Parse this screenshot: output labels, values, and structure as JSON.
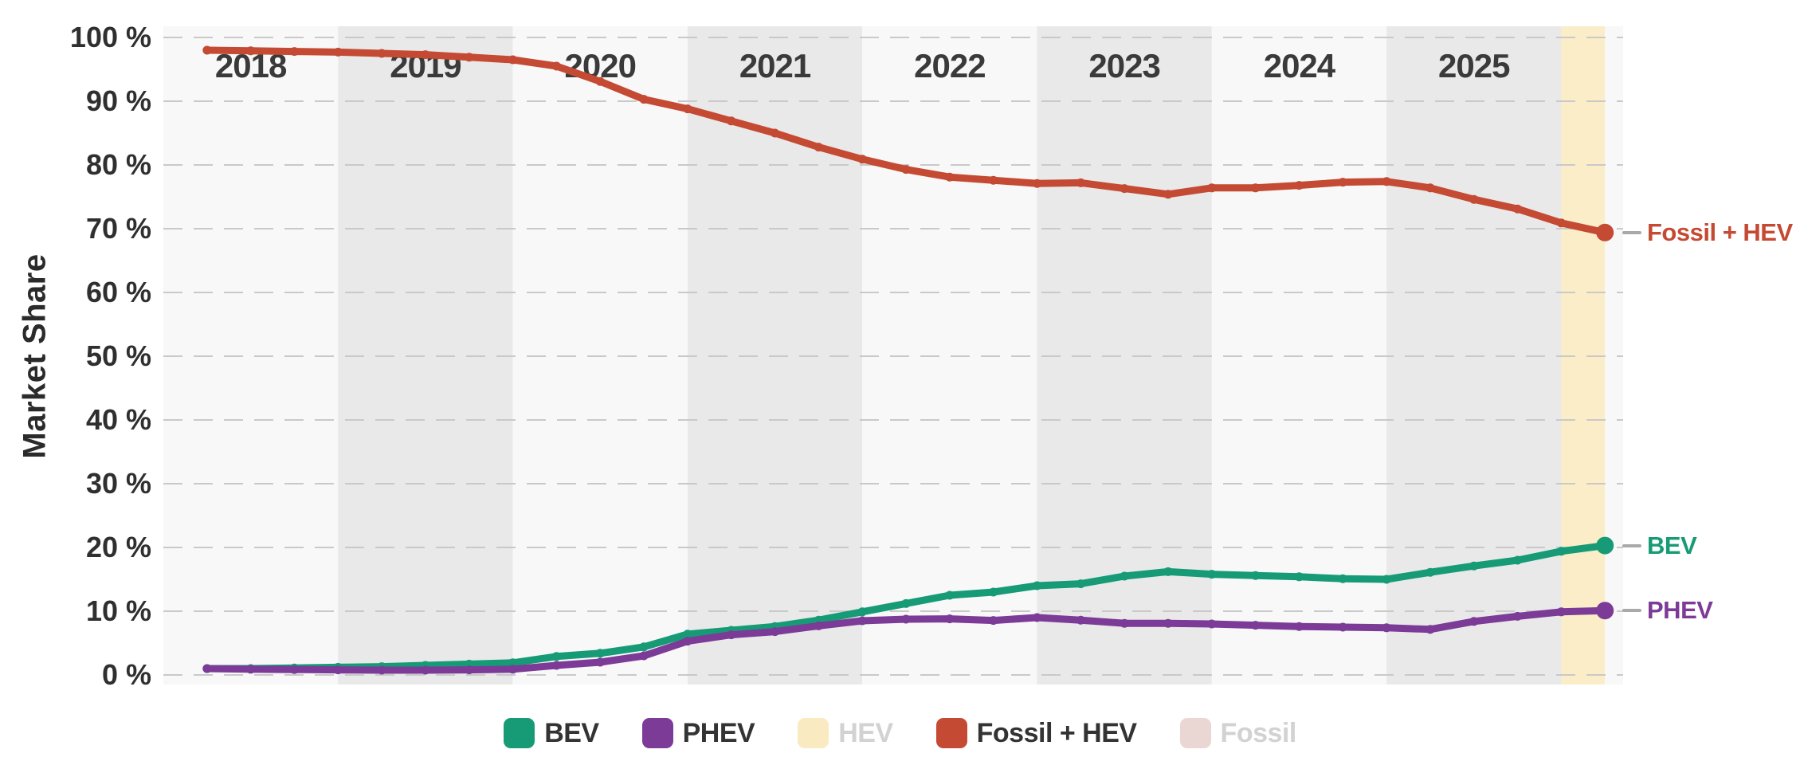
{
  "colors": {
    "band_light": "#f8f8f8",
    "band_dark": "#e9e9e9",
    "highlight_band": "#faedc8",
    "gridline": "#c9c9c9",
    "tick_text": "#2f2f2f",
    "year_text": "#3a3a3a",
    "legend_text_active": "#333333",
    "legend_text_inactive": "#d2d2d2",
    "bev": "#169b76",
    "phev": "#7b3b97",
    "hev": "#faeac2",
    "fossil_hev": "#c44a33",
    "fossil": "#ead7d3"
  },
  "y_tick_labels": [
    "100 %",
    "90 %",
    "80 %",
    "70 %",
    "60 %",
    "50 %",
    "40 %",
    "30 %",
    "20 %",
    "10 %",
    "0 %"
  ],
  "chart_data": {
    "type": "line",
    "title": "",
    "ylabel": "Market Share",
    "ylim": [
      0,
      100
    ],
    "y_tick_step": 10,
    "grid": "horizontal-dashed",
    "legend_position": "bottom",
    "x_unit": "quarter",
    "year_bands": [
      "2018",
      "2019",
      "2020",
      "2021",
      "2022",
      "2023",
      "2024",
      "2025"
    ],
    "highlighted_period": "latest quarter",
    "x": [
      "2018 Q1",
      "2018 Q2",
      "2018 Q3",
      "2018 Q4",
      "2019 Q1",
      "2019 Q2",
      "2019 Q3",
      "2019 Q4",
      "2020 Q1",
      "2020 Q2",
      "2020 Q3",
      "2020 Q4",
      "2021 Q1",
      "2021 Q2",
      "2021 Q3",
      "2021 Q4",
      "2022 Q1",
      "2022 Q2",
      "2022 Q3",
      "2022 Q4",
      "2023 Q1",
      "2023 Q2",
      "2023 Q3",
      "2023 Q4",
      "2024 Q1",
      "2024 Q2",
      "2024 Q3",
      "2024 Q4",
      "2025 Q1",
      "2025 Q2",
      "2025 Q3",
      "2025 Q4",
      "2026 Q1"
    ],
    "series": [
      {
        "name": "BEV",
        "color": "#169b76",
        "active": true,
        "values": [
          1.0,
          1.0,
          1.1,
          1.2,
          1.3,
          1.5,
          1.7,
          1.9,
          2.9,
          3.4,
          4.4,
          6.4,
          7.0,
          7.6,
          8.6,
          9.9,
          11.2,
          12.5,
          13.0,
          14.0,
          14.3,
          15.5,
          16.2,
          15.8,
          15.6,
          15.4,
          15.1,
          15.0,
          16.1,
          17.1,
          18.0,
          19.4,
          20.3
        ]
      },
      {
        "name": "PHEV",
        "color": "#7b3b97",
        "active": true,
        "values": [
          1.0,
          0.9,
          0.85,
          0.8,
          0.75,
          0.75,
          0.8,
          0.9,
          1.5,
          2.0,
          3.0,
          5.3,
          6.3,
          6.8,
          7.7,
          8.5,
          8.75,
          8.8,
          8.55,
          9.0,
          8.6,
          8.1,
          8.1,
          8.0,
          7.8,
          7.6,
          7.5,
          7.4,
          7.15,
          8.4,
          9.2,
          9.9,
          10.1
        ]
      },
      {
        "name": "HEV",
        "color": "#faeac2",
        "active": false,
        "values": []
      },
      {
        "name": "Fossil + HEV",
        "color": "#c44a33",
        "active": true,
        "values": [
          98.0,
          97.9,
          97.8,
          97.7,
          97.5,
          97.3,
          96.9,
          96.5,
          95.5,
          93.1,
          90.3,
          88.8,
          86.9,
          85.0,
          82.8,
          80.9,
          79.3,
          78.1,
          77.6,
          77.1,
          77.2,
          76.3,
          75.4,
          76.4,
          76.4,
          76.8,
          77.3,
          77.4,
          76.4,
          74.6,
          73.1,
          70.9,
          69.4
        ]
      },
      {
        "name": "Fossil",
        "color": "#ead7d3",
        "active": false,
        "values": []
      }
    ]
  }
}
